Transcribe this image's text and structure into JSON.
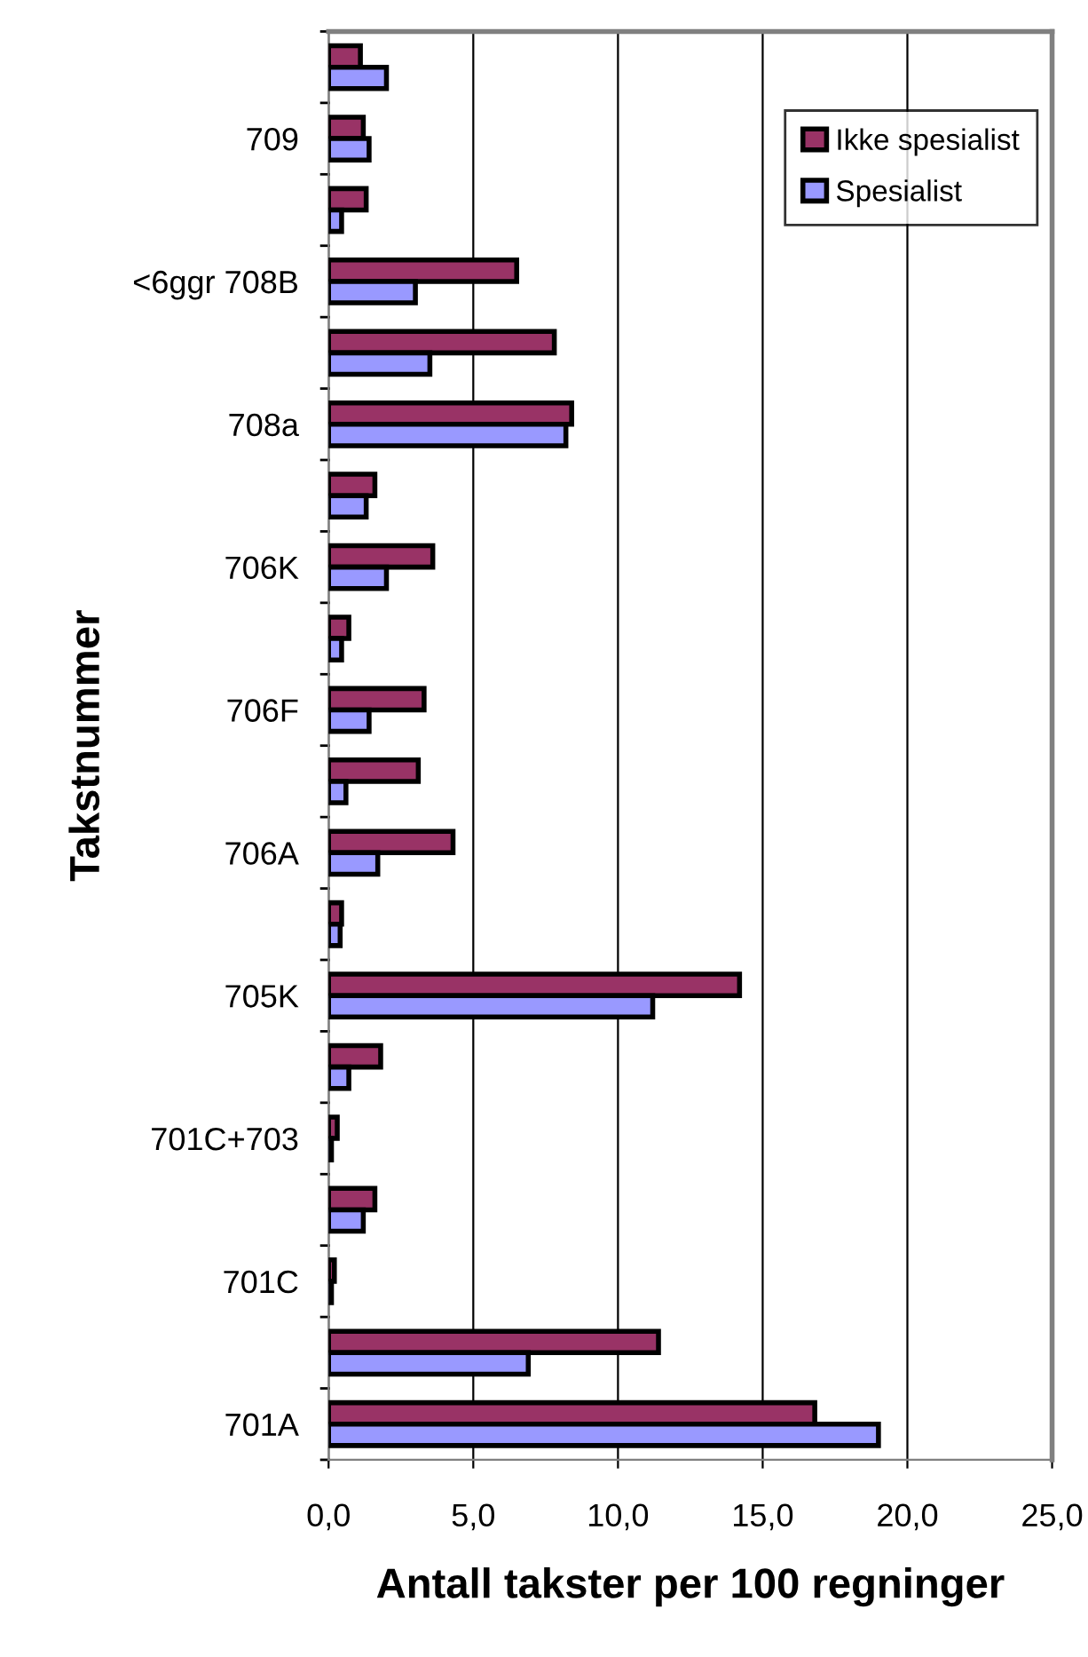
{
  "chart_data": {
    "type": "bar",
    "orientation": "horizontal",
    "xlabel": "Antall takster per 100 regninger",
    "ylabel": "Takstnummer",
    "categories": [
      null,
      "709",
      null,
      "<6ggr 708B",
      null,
      "708a",
      null,
      "706K",
      null,
      "706F",
      null,
      "706A",
      null,
      "705K",
      null,
      "701C+703",
      null,
      "701C",
      null,
      "701A"
    ],
    "series": [
      {
        "name": "Ikke spesialist",
        "color": "#993366",
        "values": [
          1.1,
          1.2,
          1.3,
          6.5,
          7.8,
          8.4,
          1.6,
          3.6,
          0.7,
          3.3,
          3.1,
          4.3,
          0.45,
          14.2,
          1.8,
          0.3,
          1.6,
          0.2,
          11.4,
          16.8
        ]
      },
      {
        "name": "Spesialist",
        "color": "#9999ff",
        "values": [
          2.0,
          1.4,
          0.45,
          3.0,
          3.5,
          8.2,
          1.3,
          2.0,
          0.45,
          1.4,
          0.6,
          1.7,
          0.4,
          11.2,
          0.7,
          0.1,
          1.2,
          0.1,
          6.9,
          19.0
        ]
      }
    ],
    "xlim": [
      0,
      25
    ],
    "xticks": [
      {
        "value": 0,
        "label": "0,0"
      },
      {
        "value": 5,
        "label": "5,0"
      },
      {
        "value": 10,
        "label": "10,0"
      },
      {
        "value": 15,
        "label": "15,0"
      },
      {
        "value": 20,
        "label": "20,0"
      },
      {
        "value": 25,
        "label": "25,0"
      }
    ],
    "grid": "x",
    "legend": "top right"
  }
}
